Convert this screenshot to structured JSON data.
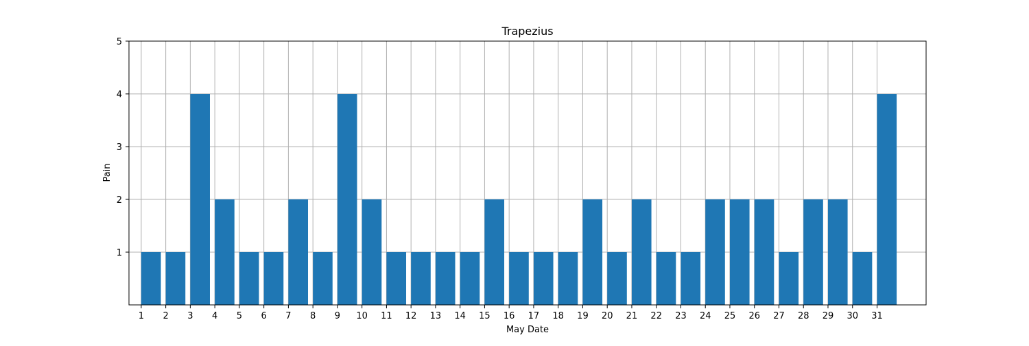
{
  "chart_data": {
    "type": "bar",
    "title": "Trapezius",
    "xlabel": "May Date",
    "ylabel": "Pain",
    "categories": [
      "1",
      "2",
      "3",
      "4",
      "5",
      "6",
      "7",
      "8",
      "9",
      "10",
      "11",
      "12",
      "13",
      "14",
      "15",
      "16",
      "17",
      "18",
      "19",
      "20",
      "21",
      "22",
      "23",
      "24",
      "25",
      "26",
      "27",
      "28",
      "29",
      "30",
      "31"
    ],
    "values": [
      1,
      1,
      4,
      2,
      1,
      1,
      2,
      1,
      4,
      2,
      1,
      1,
      1,
      1,
      2,
      1,
      1,
      1,
      2,
      1,
      2,
      1,
      1,
      2,
      2,
      2,
      1,
      2,
      2,
      1,
      4
    ],
    "yticks": [
      1,
      2,
      3,
      4,
      5
    ],
    "ylim": [
      0,
      5
    ],
    "xlim": [
      -0.5,
      32
    ],
    "bar_alignment": "edge",
    "bar_width": 0.8,
    "grid": true,
    "bar_color": "#1f77b4",
    "grid_color": "#b0b0b0"
  }
}
